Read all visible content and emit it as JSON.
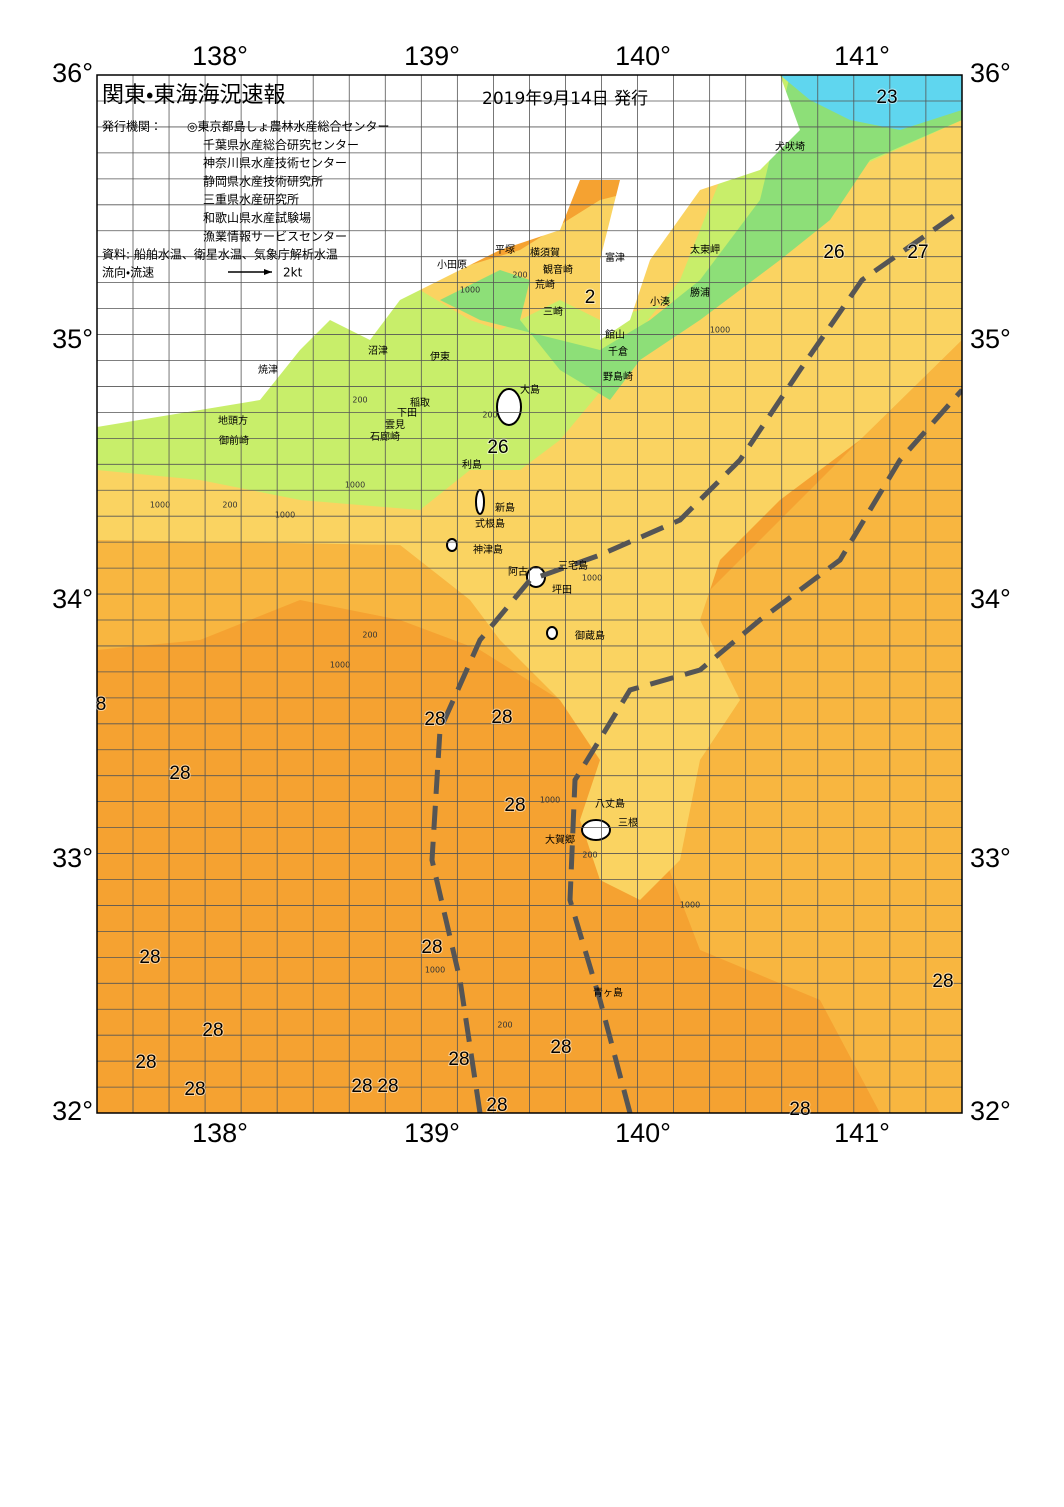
{
  "header": {
    "title": "関東・東海海況速報",
    "date": "2019年9月14日 発行",
    "issuer_label": "発行機関：",
    "issuers": [
      "◎東京都島しょ農林水産総合センター",
      "千葉県水産総合研究センター",
      "神奈川県水産技術センター",
      "静岡県水産技術研究所",
      "三重県水産研究所",
      "和歌山県水産試験場",
      "漁業情報サービスセンター"
    ],
    "source": "資料: 船舶水温、衛星水温、気象庁解析水温",
    "legend_label": "流向・流速",
    "legend_speed": "2kt"
  },
  "axes": {
    "lon_labels": [
      "138°",
      "139°",
      "140°",
      "141°"
    ],
    "lat_labels": [
      "36°",
      "35°",
      "34°",
      "33°",
      "32°"
    ]
  },
  "places": [
    "小田原",
    "平塚",
    "横須賀",
    "観音崎",
    "荒崎",
    "三崎",
    "富津",
    "太東岬",
    "犬吠埼",
    "勝浦",
    "小湊",
    "館山",
    "千倉",
    "野島崎",
    "沼津",
    "伊東",
    "焼津",
    "稲取",
    "下田",
    "雲見",
    "石廊崎",
    "地頭方",
    "御前崎",
    "大島",
    "利島",
    "新島",
    "式根島",
    "神津島",
    "三宅島",
    "阿古",
    "坪田",
    "御蔵島",
    "八丈島",
    "三根",
    "大賀郷",
    "青ヶ島"
  ],
  "temperature_labels": [
    "23",
    "26",
    "27",
    "2",
    "26",
    "8",
    "28",
    "28",
    "28",
    "28",
    "28",
    "28",
    "28",
    "28",
    "28",
    "28",
    "28",
    "28",
    "28",
    "28",
    "28",
    "28"
  ],
  "contour_labels": [
    "1000",
    "200",
    "200",
    "1000",
    "200",
    "1000",
    "200",
    "1000",
    "200",
    "1000",
    "1000",
    "1000",
    "200",
    "1000",
    "1000",
    "200",
    "1000"
  ]
}
